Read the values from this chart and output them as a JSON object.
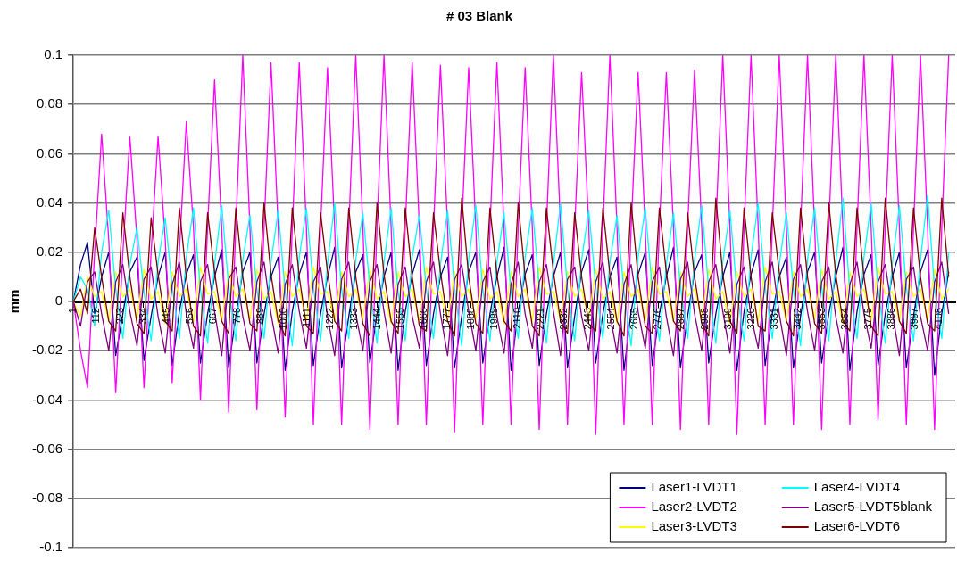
{
  "chart_data": {
    "type": "line",
    "title": "# 03 Blank",
    "ylabel": "mm",
    "x": [
      1,
      35,
      68,
      102,
      135,
      169,
      202,
      236,
      269,
      303,
      336,
      370,
      403,
      437,
      470,
      504,
      537,
      571,
      604,
      638,
      671,
      705,
      738,
      772,
      805,
      839,
      872,
      906,
      939,
      973,
      1006,
      1040,
      1073,
      1107,
      1140,
      1174,
      1207,
      1241,
      1274,
      1308,
      1341,
      1375,
      1408,
      1442,
      1475,
      1509,
      1542,
      1576,
      1609,
      1643,
      1676,
      1710,
      1743,
      1777,
      1810,
      1844,
      1877,
      1911,
      1944,
      1978,
      2011,
      2045,
      2078,
      2112,
      2145,
      2179,
      2212,
      2246,
      2279,
      2313,
      2346,
      2380,
      2413,
      2447,
      2480,
      2514,
      2547,
      2581,
      2614,
      2648,
      2681,
      2715,
      2748,
      2782,
      2815,
      2849,
      2882,
      2916,
      2949,
      2983,
      3016,
      3050,
      3083,
      3117,
      3150,
      3184,
      3217,
      3251,
      3284,
      3318,
      3351,
      3385,
      3418,
      3452,
      3485,
      3519,
      3552,
      3586,
      3619,
      3653,
      3686,
      3720,
      3753,
      3787,
      3820,
      3854,
      3887,
      3921,
      3954,
      3988,
      4021,
      4055,
      4088,
      4122,
      4155
    ],
    "xlim": [
      1,
      4186
    ],
    "xticks": [
      1,
      112,
      223,
      334,
      445,
      556,
      667,
      778,
      889,
      1000,
      1111,
      1222,
      1333,
      1444,
      1555,
      1666,
      1777,
      1888,
      1999,
      2110,
      2221,
      2332,
      2443,
      2554,
      2665,
      2776,
      2887,
      2998,
      3109,
      3220,
      3331,
      3442,
      3553,
      3664,
      3775,
      3886,
      3997,
      4108
    ],
    "ylim": [
      -0.1,
      0.1
    ],
    "yticks": [
      -0.1,
      -0.08,
      -0.06,
      -0.04,
      -0.02,
      0,
      0.02,
      0.04,
      0.06,
      0.08,
      0.1
    ],
    "grid": "y",
    "legend": "bottom right",
    "marker": "none",
    "line_style": "solid",
    "series": [
      {
        "name": "Laser1-LVDT1",
        "color": "#000080",
        "values": [
          0,
          0.015,
          0.024,
          -0.005,
          0.01,
          0.02,
          -0.022,
          -0.005,
          0.012,
          0.018,
          -0.024,
          -0.006,
          0.01,
          0.02,
          -0.026,
          -0.004,
          0.011,
          0.019,
          -0.025,
          -0.005,
          0.01,
          0.021,
          -0.027,
          -0.006,
          0.012,
          0.02,
          -0.025,
          -0.005,
          0.01,
          0.018,
          -0.028,
          -0.004,
          0.011,
          0.02,
          -0.026,
          -0.005,
          0.01,
          0.022,
          -0.027,
          -0.006,
          0.012,
          0.019,
          -0.025,
          -0.005,
          0.01,
          0.02,
          -0.028,
          -0.004,
          0.011,
          0.021,
          -0.026,
          -0.005,
          0.01,
          0.018,
          -0.027,
          -0.006,
          0.012,
          0.02,
          -0.025,
          -0.005,
          0.01,
          0.022,
          -0.028,
          -0.004,
          0.011,
          0.019,
          -0.026,
          -0.005,
          0.01,
          0.02,
          -0.027,
          -0.006,
          0.012,
          0.021,
          -0.025,
          -0.005,
          0.01,
          0.018,
          -0.028,
          -0.004,
          0.011,
          0.02,
          -0.026,
          -0.005,
          0.01,
          0.022,
          -0.027,
          -0.006,
          0.012,
          0.019,
          -0.025,
          -0.005,
          0.01,
          0.02,
          -0.028,
          -0.004,
          0.011,
          0.021,
          -0.026,
          -0.005,
          0.01,
          0.018,
          -0.027,
          -0.006,
          0.012,
          0.02,
          -0.025,
          -0.005,
          0.01,
          0.022,
          -0.028,
          -0.004,
          0.011,
          0.019,
          -0.026,
          -0.005,
          0.01,
          0.02,
          -0.027,
          -0.006,
          0.012,
          0.021,
          -0.03,
          -0.005,
          0.012
        ]
      },
      {
        "name": "Laser2-LVDT2",
        "color": "#ff00ff",
        "values": [
          0,
          -0.02,
          -0.035,
          0.02,
          0.068,
          0.025,
          -0.037,
          0.02,
          0.067,
          0.025,
          -0.035,
          0.02,
          0.067,
          0.025,
          -0.033,
          0.02,
          0.073,
          0.03,
          -0.04,
          0.03,
          0.09,
          0.03,
          -0.045,
          0.03,
          0.1,
          0.03,
          -0.044,
          0.03,
          0.097,
          0.03,
          -0.047,
          0.03,
          0.097,
          0.03,
          -0.05,
          0.03,
          0.095,
          0.03,
          -0.05,
          0.03,
          0.1,
          0.03,
          -0.052,
          0.03,
          0.1,
          0.03,
          -0.05,
          0.03,
          0.097,
          0.03,
          -0.05,
          0.03,
          0.096,
          0.03,
          -0.053,
          0.03,
          0.095,
          0.03,
          -0.05,
          0.03,
          0.097,
          0.03,
          -0.05,
          0.03,
          0.095,
          0.03,
          -0.052,
          0.03,
          0.1,
          0.03,
          -0.05,
          0.03,
          0.093,
          0.03,
          -0.054,
          0.03,
          0.1,
          0.03,
          -0.05,
          0.03,
          0.093,
          0.03,
          -0.05,
          0.03,
          0.093,
          0.03,
          -0.052,
          0.03,
          0.094,
          0.03,
          -0.05,
          0.03,
          0.1,
          0.03,
          -0.054,
          0.03,
          0.1,
          0.03,
          -0.05,
          0.03,
          0.1,
          0.03,
          -0.05,
          0.03,
          0.1,
          0.03,
          -0.052,
          0.03,
          0.1,
          0.03,
          -0.05,
          0.03,
          0.1,
          0.03,
          -0.048,
          0.03,
          0.1,
          0.03,
          -0.05,
          0.03,
          0.1,
          0.03,
          -0.052,
          0.03,
          0.1
        ]
      },
      {
        "name": "Laser3-LVDT3",
        "color": "#ffff00",
        "values": [
          0,
          -0.006,
          0.01,
          0.002,
          0.004,
          -0.008,
          0.012,
          0.002,
          0.005,
          -0.007,
          0.013,
          0.001,
          0.004,
          -0.009,
          0.012,
          0.002,
          0.005,
          -0.008,
          0.014,
          0.003,
          0.004,
          -0.008,
          0.012,
          0.002,
          0.005,
          -0.007,
          0.013,
          0.001,
          0.004,
          -0.009,
          0.012,
          0.002,
          0.005,
          -0.008,
          0.014,
          0.003,
          0.004,
          -0.008,
          0.012,
          0.002,
          0.005,
          -0.007,
          0.013,
          0.001,
          0.004,
          -0.009,
          0.012,
          0.002,
          0.005,
          -0.008,
          0.014,
          0.003,
          0.004,
          -0.008,
          0.012,
          0.002,
          0.005,
          -0.007,
          0.013,
          0.001,
          0.004,
          -0.009,
          0.012,
          0.002,
          0.005,
          -0.008,
          0.014,
          0.003,
          0.004,
          -0.008,
          0.012,
          0.002,
          0.005,
          -0.007,
          0.013,
          0.001,
          0.004,
          -0.009,
          0.012,
          0.002,
          0.005,
          -0.008,
          0.014,
          0.003,
          0.004,
          -0.008,
          0.012,
          0.002,
          0.005,
          -0.007,
          0.013,
          0.001,
          0.004,
          -0.009,
          0.012,
          0.002,
          0.005,
          -0.008,
          0.014,
          0.003,
          0.004,
          -0.008,
          0.012,
          0.002,
          0.005,
          -0.007,
          0.013,
          0.001,
          0.004,
          -0.009,
          0.012,
          0.002,
          0.005,
          -0.008,
          0.014,
          0.003,
          0.004,
          -0.008,
          0.012,
          0.002,
          0.005,
          -0.007,
          0.013,
          0.001,
          0.005
        ]
      },
      {
        "name": "Laser4-LVDT4",
        "color": "#00ffff",
        "values": [
          0,
          0.01,
          0.005,
          -0.01,
          0.02,
          0.037,
          0.005,
          -0.015,
          0.015,
          0.03,
          0.004,
          -0.016,
          0.016,
          0.034,
          0.006,
          -0.015,
          0.018,
          0.038,
          0.005,
          -0.017,
          0.015,
          0.039,
          0.006,
          -0.016,
          0.017,
          0.035,
          0.005,
          -0.015,
          0.016,
          0.037,
          0.004,
          -0.018,
          0.018,
          0.038,
          0.006,
          -0.016,
          0.015,
          0.04,
          0.005,
          -0.015,
          0.017,
          0.036,
          0.006,
          -0.017,
          0.016,
          0.038,
          0.004,
          -0.016,
          0.018,
          0.035,
          0.005,
          -0.015,
          0.015,
          0.037,
          0.006,
          -0.018,
          0.017,
          0.039,
          0.005,
          -0.016,
          0.016,
          0.036,
          0.004,
          -0.015,
          0.018,
          0.038,
          0.006,
          -0.017,
          0.015,
          0.04,
          0.005,
          -0.016,
          0.017,
          0.037,
          0.006,
          -0.015,
          0.016,
          0.035,
          0.004,
          -0.018,
          0.018,
          0.038,
          0.005,
          -0.016,
          0.015,
          0.036,
          0.006,
          -0.015,
          0.017,
          0.039,
          0.005,
          -0.017,
          0.016,
          0.037,
          0.004,
          -0.016,
          0.018,
          0.04,
          0.006,
          -0.015,
          0.015,
          0.036,
          0.005,
          -0.018,
          0.017,
          0.038,
          0.006,
          -0.016,
          0.016,
          0.042,
          0.004,
          -0.015,
          0.018,
          0.04,
          0.005,
          -0.017,
          0.015,
          0.039,
          0.006,
          -0.016,
          0.017,
          0.043,
          0.005,
          -0.015,
          0.02
        ]
      },
      {
        "name": "Laser5-LVDT5blank",
        "color": "#800080",
        "values": [
          0,
          -0.01,
          0.008,
          0.012,
          -0.005,
          -0.02,
          0.008,
          0.015,
          -0.004,
          -0.018,
          0.009,
          0.014,
          -0.006,
          -0.021,
          0.007,
          0.016,
          -0.005,
          -0.019,
          0.008,
          0.015,
          -0.004,
          -0.022,
          0.009,
          0.014,
          -0.006,
          -0.02,
          0.008,
          0.016,
          -0.005,
          -0.021,
          0.007,
          0.015,
          -0.004,
          -0.019,
          0.008,
          0.014,
          -0.006,
          -0.022,
          0.009,
          0.016,
          -0.005,
          -0.02,
          0.008,
          0.015,
          -0.004,
          -0.021,
          0.007,
          0.014,
          -0.006,
          -0.019,
          0.008,
          0.016,
          -0.005,
          -0.022,
          0.009,
          0.015,
          -0.004,
          -0.02,
          0.008,
          0.014,
          -0.006,
          -0.021,
          0.007,
          0.016,
          -0.005,
          -0.019,
          0.008,
          0.015,
          -0.004,
          -0.022,
          0.009,
          0.014,
          -0.006,
          -0.02,
          0.008,
          0.016,
          -0.005,
          -0.021,
          0.007,
          0.015,
          -0.004,
          -0.019,
          0.008,
          0.014,
          -0.006,
          -0.022,
          0.009,
          0.016,
          -0.005,
          -0.02,
          0.008,
          0.015,
          -0.004,
          -0.021,
          0.007,
          0.014,
          -0.006,
          -0.019,
          0.008,
          0.016,
          -0.005,
          -0.022,
          0.009,
          0.015,
          -0.004,
          -0.02,
          0.008,
          0.014,
          -0.006,
          -0.021,
          0.007,
          0.016,
          -0.005,
          -0.019,
          0.008,
          0.015,
          -0.004,
          -0.022,
          0.009,
          0.014,
          -0.006,
          -0.02,
          0.008,
          0.016,
          -0.005
        ]
      },
      {
        "name": "Laser6-LVDT6",
        "color": "#800000",
        "values": [
          0,
          0.005,
          -0.005,
          0.03,
          0.01,
          -0.008,
          -0.012,
          0.036,
          0.01,
          -0.009,
          -0.013,
          0.034,
          0.011,
          -0.008,
          -0.012,
          0.038,
          0.01,
          -0.01,
          -0.014,
          0.036,
          0.012,
          -0.008,
          -0.013,
          0.038,
          0.01,
          -0.009,
          -0.012,
          0.04,
          0.011,
          -0.008,
          -0.014,
          0.038,
          0.01,
          -0.01,
          -0.013,
          0.036,
          0.012,
          -0.008,
          -0.012,
          0.038,
          0.01,
          -0.009,
          -0.014,
          0.04,
          0.011,
          -0.008,
          -0.013,
          0.038,
          0.01,
          -0.01,
          -0.012,
          0.036,
          0.012,
          -0.008,
          -0.014,
          0.042,
          0.01,
          -0.009,
          -0.013,
          0.038,
          0.011,
          -0.008,
          -0.012,
          0.04,
          0.01,
          -0.01,
          -0.014,
          0.038,
          0.012,
          -0.008,
          -0.013,
          0.036,
          0.01,
          -0.009,
          -0.012,
          0.038,
          0.011,
          -0.008,
          -0.014,
          0.04,
          0.01,
          -0.01,
          -0.013,
          0.038,
          0.012,
          -0.008,
          -0.012,
          0.036,
          0.01,
          -0.009,
          -0.014,
          0.042,
          0.011,
          -0.008,
          -0.013,
          0.038,
          0.01,
          -0.01,
          -0.012,
          0.036,
          0.012,
          -0.008,
          -0.014,
          0.038,
          0.01,
          -0.009,
          -0.013,
          0.04,
          0.011,
          -0.008,
          -0.012,
          0.038,
          0.01,
          -0.01,
          -0.014,
          0.042,
          0.012,
          -0.008,
          -0.013,
          0.038,
          0.01,
          -0.009,
          -0.012,
          0.042,
          0.01
        ]
      }
    ]
  }
}
